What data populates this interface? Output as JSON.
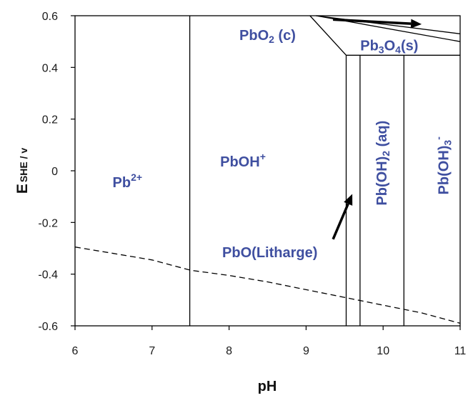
{
  "chart_data": {
    "type": "line",
    "title": "",
    "xlabel": "pH",
    "ylabel": {
      "main": "E",
      "sub": "SHE / v"
    },
    "xlim": [
      6,
      11
    ],
    "ylim": [
      -0.6,
      0.6
    ],
    "xticks": [
      "6",
      "7",
      "8",
      "9",
      "10",
      "11"
    ],
    "yticks": [
      "-0.6",
      "-0.4",
      "-0.2",
      "0",
      "0.2",
      "0.4",
      "0.6"
    ],
    "grid": false,
    "label_color": "#3f4fa0",
    "boundaries": [
      {
        "name": "Pb2+/PbOH+",
        "points": [
          [
            7.49,
            -0.6
          ],
          [
            7.49,
            0.6
          ]
        ]
      },
      {
        "name": "PbOH+/PbO",
        "points": [
          [
            9.52,
            -0.6
          ],
          [
            9.52,
            0.447
          ]
        ]
      },
      {
        "name": "PbO/Pb(OH)2",
        "points": [
          [
            9.7,
            -0.6
          ],
          [
            9.7,
            0.447
          ]
        ]
      },
      {
        "name": "Pb(OH)2/Pb(OH)3-",
        "points": [
          [
            10.27,
            -0.6
          ],
          [
            10.27,
            0.447
          ]
        ]
      },
      {
        "name": "Pb3O4 lower edge",
        "points": [
          [
            9.52,
            0.447
          ],
          [
            11.0,
            0.447
          ]
        ]
      },
      {
        "name": "PbO2/Pb3O4",
        "points": [
          [
            9.05,
            0.6
          ],
          [
            9.52,
            0.447
          ]
        ]
      },
      {
        "name": "Pb3O4 upper edge",
        "points": [
          [
            9.13,
            0.6
          ],
          [
            11.0,
            0.5
          ]
        ]
      },
      {
        "name": "PbO2 upper line",
        "points": [
          [
            9.13,
            0.6
          ],
          [
            11.0,
            0.53
          ]
        ]
      }
    ],
    "water_line": {
      "style": "dashed",
      "points": [
        [
          6.0,
          -0.295
        ],
        [
          6.5,
          -0.32
        ],
        [
          7.0,
          -0.345
        ],
        [
          7.5,
          -0.385
        ],
        [
          8.0,
          -0.405
        ],
        [
          8.5,
          -0.43
        ],
        [
          9.0,
          -0.46
        ],
        [
          9.5,
          -0.49
        ],
        [
          10.0,
          -0.52
        ],
        [
          10.5,
          -0.55
        ],
        [
          11.0,
          -0.59
        ]
      ]
    },
    "arrows": [
      {
        "from": [
          9.35,
          0.585
        ],
        "to": [
          10.5,
          0.567
        ]
      },
      {
        "from": [
          9.35,
          -0.265
        ],
        "to": [
          9.6,
          -0.09
        ]
      }
    ],
    "regions": [
      {
        "base": "Pb",
        "sup": "2+",
        "x": 6.68,
        "y": -0.05
      },
      {
        "base": "PbOH",
        "sup": "+",
        "x": 8.18,
        "y": 0.03
      },
      {
        "base": "PbO",
        "sub": "2",
        "tail": " (c)",
        "x": 8.5,
        "y": 0.52
      },
      {
        "base": "Pb",
        "sub": "3",
        "mid": "O",
        "sub2": "4",
        "tail": "(s)",
        "x": 10.08,
        "y": 0.48
      },
      {
        "text": "PbO(Litharge)",
        "x": 8.53,
        "y": -0.32
      },
      {
        "base": "Pb(OH)",
        "sub": "2",
        "tail": " (aq)",
        "x": 10.0,
        "y": 0.03,
        "rotate": -90
      },
      {
        "base": "Pb(OH)",
        "sub": "3",
        "sup": "-",
        "x": 10.8,
        "y": 0.02,
        "rotate": -90
      }
    ]
  }
}
